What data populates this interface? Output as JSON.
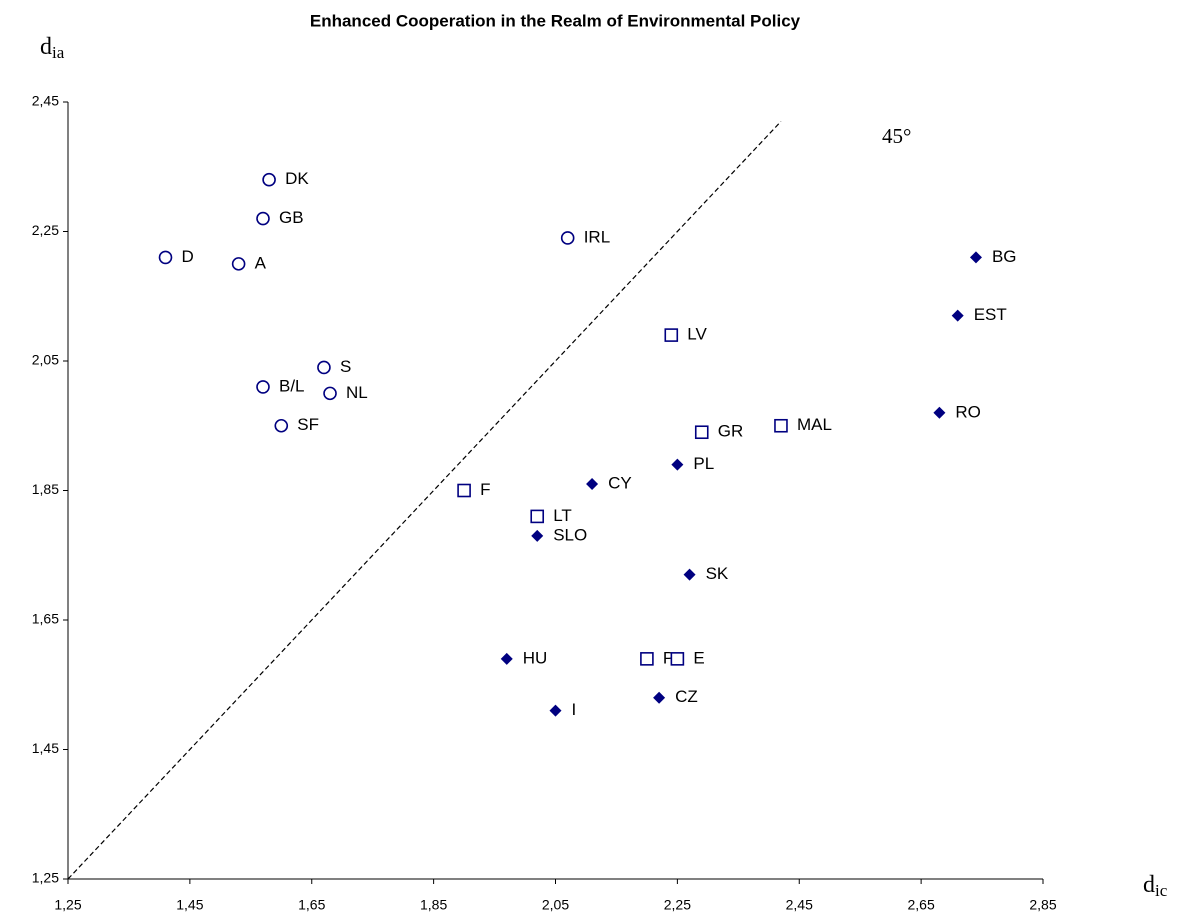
{
  "chart_data": {
    "type": "scatter",
    "title": "Enhanced Cooperation in the Realm of Environmental Policy",
    "xlabel": {
      "text": "d",
      "subscript": "ic"
    },
    "ylabel": {
      "text": "d",
      "subscript": "ia"
    },
    "xlim": [
      1.25,
      2.85
    ],
    "ylim": [
      1.25,
      2.45
    ],
    "xticks": [
      {
        "value": 1.25,
        "label": "1,25"
      },
      {
        "value": 1.45,
        "label": "1,45"
      },
      {
        "value": 1.65,
        "label": "1,65"
      },
      {
        "value": 1.85,
        "label": "1,85"
      },
      {
        "value": 2.05,
        "label": "2,05"
      },
      {
        "value": 2.25,
        "label": "2,25"
      },
      {
        "value": 2.45,
        "label": "2,45"
      },
      {
        "value": 2.65,
        "label": "2,65"
      },
      {
        "value": 2.85,
        "label": "2,85"
      }
    ],
    "yticks": [
      {
        "value": 1.25,
        "label": "1,25"
      },
      {
        "value": 1.45,
        "label": "1,45"
      },
      {
        "value": 1.65,
        "label": "1,65"
      },
      {
        "value": 1.85,
        "label": "1,85"
      },
      {
        "value": 2.05,
        "label": "2,05"
      },
      {
        "value": 2.25,
        "label": "2,25"
      },
      {
        "value": 2.45,
        "label": "2,45"
      }
    ],
    "grid": false,
    "diagonal": {
      "label": "45°",
      "from": 1.25,
      "to": 2.42
    },
    "series": [
      {
        "marker": "circle",
        "color": "#000080",
        "labels": [
          "DK",
          "GB",
          "D",
          "A",
          "IRL",
          "S",
          "B/L",
          "NL",
          "SF"
        ],
        "x": [
          1.58,
          1.57,
          1.41,
          1.53,
          2.07,
          1.67,
          1.57,
          1.68,
          1.6
        ],
        "values": [
          2.33,
          2.27,
          2.21,
          2.2,
          2.24,
          2.04,
          2.01,
          2.0,
          1.95
        ]
      },
      {
        "marker": "square",
        "color": "#000080",
        "labels": [
          "LV",
          "GR",
          "MAL",
          "F",
          "LT",
          "P",
          "E"
        ],
        "x": [
          2.24,
          2.29,
          2.42,
          1.9,
          2.02,
          2.2,
          2.25
        ],
        "values": [
          2.09,
          1.94,
          1.95,
          1.85,
          1.81,
          1.59,
          1.59
        ]
      },
      {
        "marker": "diamond",
        "color": "#000080",
        "labels": [
          "BG",
          "EST",
          "RO",
          "PL",
          "CY",
          "SLO",
          "SK",
          "HU",
          "CZ",
          "I"
        ],
        "x": [
          2.74,
          2.71,
          2.68,
          2.25,
          2.11,
          2.02,
          2.27,
          1.97,
          2.22,
          2.05
        ],
        "values": [
          2.21,
          2.12,
          1.97,
          1.89,
          1.86,
          1.78,
          1.72,
          1.59,
          1.53,
          1.51
        ]
      }
    ]
  }
}
